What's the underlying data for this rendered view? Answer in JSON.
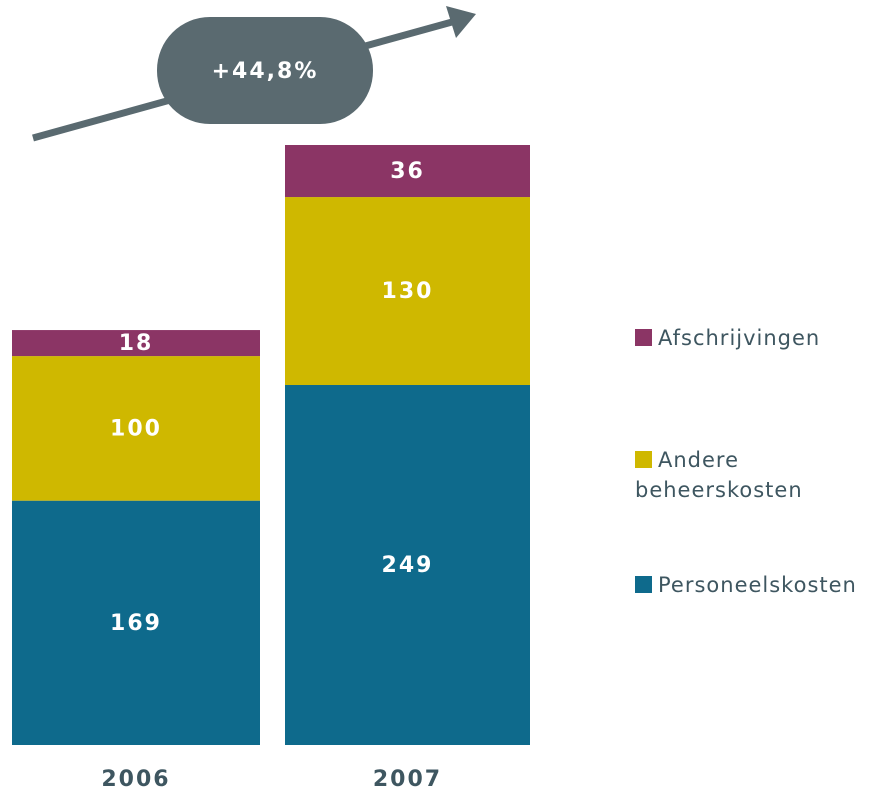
{
  "chart_data": {
    "type": "stacked_bar",
    "annotation": "+44,8%",
    "categories": [
      "2006",
      "2007"
    ],
    "series": [
      {
        "name": "Personeelskosten",
        "color": "#0e6a8c",
        "values": [
          169,
          249
        ]
      },
      {
        "name": "Andere beheerskosten",
        "color": "#cfb800",
        "values": [
          100,
          130
        ]
      },
      {
        "name": "Afschrijvingen",
        "color": "#8b3565",
        "values": [
          18,
          36
        ]
      }
    ]
  }
}
